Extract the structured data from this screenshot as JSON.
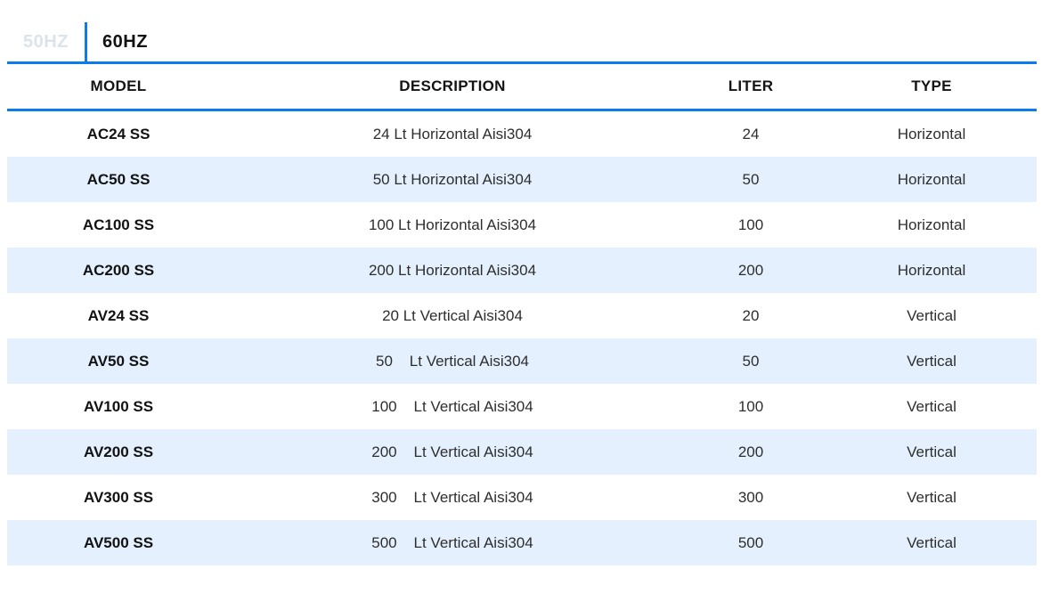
{
  "colors": {
    "accent": "#0b7bed",
    "stripe": "#e4f0fd",
    "inactive_tab": "#dce3ea"
  },
  "tabs": [
    {
      "label": "50HZ",
      "active": false
    },
    {
      "label": "60HZ",
      "active": true
    }
  ],
  "table": {
    "columns": [
      "MODEL",
      "DESCRIPTION",
      "LITER",
      "TYPE"
    ],
    "rows": [
      {
        "model": "AC24 SS",
        "description": "24 Lt Horizontal Aisi304",
        "liter": "24",
        "type": "Horizontal"
      },
      {
        "model": "AC50 SS",
        "description": "50 Lt Horizontal Aisi304",
        "liter": "50",
        "type": "Horizontal"
      },
      {
        "model": "AC100 SS",
        "description": "100 Lt Horizontal Aisi304",
        "liter": "100",
        "type": "Horizontal"
      },
      {
        "model": "AC200 SS",
        "description": "200 Lt Horizontal Aisi304",
        "liter": "200",
        "type": "Horizontal"
      },
      {
        "model": "AV24 SS",
        "description": "20 Lt Vertical Aisi304",
        "liter": "20",
        "type": "Vertical"
      },
      {
        "model": "AV50 SS",
        "description": "50    Lt Vertical Aisi304",
        "liter": "50",
        "type": "Vertical"
      },
      {
        "model": "AV100 SS",
        "description": "100    Lt Vertical Aisi304",
        "liter": "100",
        "type": "Vertical"
      },
      {
        "model": "AV200 SS",
        "description": "200    Lt Vertical Aisi304",
        "liter": "200",
        "type": "Vertical"
      },
      {
        "model": "AV300 SS",
        "description": "300    Lt Vertical Aisi304",
        "liter": "300",
        "type": "Vertical"
      },
      {
        "model": "AV500 SS",
        "description": "500    Lt Vertical Aisi304",
        "liter": "500",
        "type": "Vertical"
      }
    ]
  }
}
